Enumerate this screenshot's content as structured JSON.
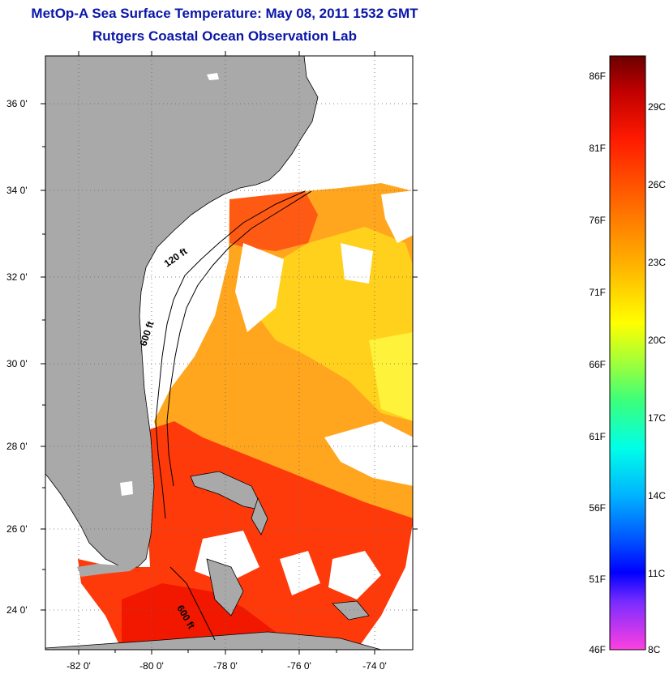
{
  "title": {
    "line1": "MetOp-A Sea Surface Temperature:  May 08, 2011 1532 GMT",
    "line2": "Rutgers Coastal Ocean Observation Lab"
  },
  "map": {
    "lat_labels": [
      "36 0'",
      "34 0'",
      "32 0'",
      "30 0'",
      "28 0'",
      "26 0'",
      "24 0'"
    ],
    "lon_labels": [
      "-82 0'",
      "-80 0'",
      "-78 0'",
      "-76 0'",
      "-74 0'"
    ],
    "contours": {
      "c120": "120 ft",
      "c600a": "600 ft",
      "c600b": "600 ft"
    },
    "colors": {
      "land": "#a9a9a9",
      "water_missing": "#ffffff",
      "warm": "#ff2a00",
      "mid": "#ff8c00",
      "cool": "#ffd21a"
    }
  },
  "colorbar": {
    "fahrenheit": [
      "86F",
      "81F",
      "76F",
      "71F",
      "66F",
      "61F",
      "56F",
      "51F",
      "46F"
    ],
    "celsius": [
      "29C",
      "26C",
      "23C",
      "20C",
      "17C",
      "14C",
      "11C",
      "8C"
    ]
  }
}
